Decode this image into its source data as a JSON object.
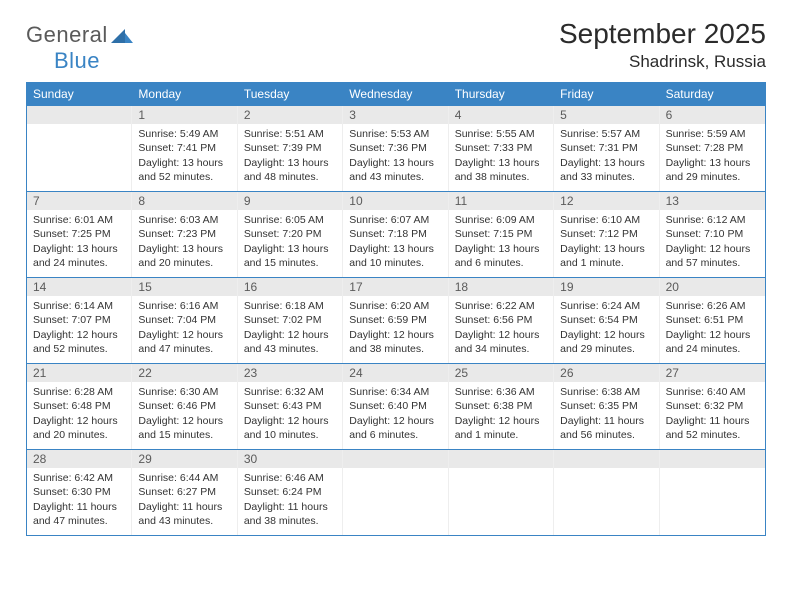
{
  "logo": {
    "word1": "General",
    "word2": "Blue"
  },
  "title": "September 2025",
  "location": "Shadrinsk, Russia",
  "header_bg": "#3a84c4",
  "daynames": [
    "Sunday",
    "Monday",
    "Tuesday",
    "Wednesday",
    "Thursday",
    "Friday",
    "Saturday"
  ],
  "weeks": [
    [
      {
        "n": "",
        "sunrise": "",
        "sunset": "",
        "daylight": ""
      },
      {
        "n": "1",
        "sunrise": "Sunrise: 5:49 AM",
        "sunset": "Sunset: 7:41 PM",
        "daylight": "Daylight: 13 hours and 52 minutes."
      },
      {
        "n": "2",
        "sunrise": "Sunrise: 5:51 AM",
        "sunset": "Sunset: 7:39 PM",
        "daylight": "Daylight: 13 hours and 48 minutes."
      },
      {
        "n": "3",
        "sunrise": "Sunrise: 5:53 AM",
        "sunset": "Sunset: 7:36 PM",
        "daylight": "Daylight: 13 hours and 43 minutes."
      },
      {
        "n": "4",
        "sunrise": "Sunrise: 5:55 AM",
        "sunset": "Sunset: 7:33 PM",
        "daylight": "Daylight: 13 hours and 38 minutes."
      },
      {
        "n": "5",
        "sunrise": "Sunrise: 5:57 AM",
        "sunset": "Sunset: 7:31 PM",
        "daylight": "Daylight: 13 hours and 33 minutes."
      },
      {
        "n": "6",
        "sunrise": "Sunrise: 5:59 AM",
        "sunset": "Sunset: 7:28 PM",
        "daylight": "Daylight: 13 hours and 29 minutes."
      }
    ],
    [
      {
        "n": "7",
        "sunrise": "Sunrise: 6:01 AM",
        "sunset": "Sunset: 7:25 PM",
        "daylight": "Daylight: 13 hours and 24 minutes."
      },
      {
        "n": "8",
        "sunrise": "Sunrise: 6:03 AM",
        "sunset": "Sunset: 7:23 PM",
        "daylight": "Daylight: 13 hours and 20 minutes."
      },
      {
        "n": "9",
        "sunrise": "Sunrise: 6:05 AM",
        "sunset": "Sunset: 7:20 PM",
        "daylight": "Daylight: 13 hours and 15 minutes."
      },
      {
        "n": "10",
        "sunrise": "Sunrise: 6:07 AM",
        "sunset": "Sunset: 7:18 PM",
        "daylight": "Daylight: 13 hours and 10 minutes."
      },
      {
        "n": "11",
        "sunrise": "Sunrise: 6:09 AM",
        "sunset": "Sunset: 7:15 PM",
        "daylight": "Daylight: 13 hours and 6 minutes."
      },
      {
        "n": "12",
        "sunrise": "Sunrise: 6:10 AM",
        "sunset": "Sunset: 7:12 PM",
        "daylight": "Daylight: 13 hours and 1 minute."
      },
      {
        "n": "13",
        "sunrise": "Sunrise: 6:12 AM",
        "sunset": "Sunset: 7:10 PM",
        "daylight": "Daylight: 12 hours and 57 minutes."
      }
    ],
    [
      {
        "n": "14",
        "sunrise": "Sunrise: 6:14 AM",
        "sunset": "Sunset: 7:07 PM",
        "daylight": "Daylight: 12 hours and 52 minutes."
      },
      {
        "n": "15",
        "sunrise": "Sunrise: 6:16 AM",
        "sunset": "Sunset: 7:04 PM",
        "daylight": "Daylight: 12 hours and 47 minutes."
      },
      {
        "n": "16",
        "sunrise": "Sunrise: 6:18 AM",
        "sunset": "Sunset: 7:02 PM",
        "daylight": "Daylight: 12 hours and 43 minutes."
      },
      {
        "n": "17",
        "sunrise": "Sunrise: 6:20 AM",
        "sunset": "Sunset: 6:59 PM",
        "daylight": "Daylight: 12 hours and 38 minutes."
      },
      {
        "n": "18",
        "sunrise": "Sunrise: 6:22 AM",
        "sunset": "Sunset: 6:56 PM",
        "daylight": "Daylight: 12 hours and 34 minutes."
      },
      {
        "n": "19",
        "sunrise": "Sunrise: 6:24 AM",
        "sunset": "Sunset: 6:54 PM",
        "daylight": "Daylight: 12 hours and 29 minutes."
      },
      {
        "n": "20",
        "sunrise": "Sunrise: 6:26 AM",
        "sunset": "Sunset: 6:51 PM",
        "daylight": "Daylight: 12 hours and 24 minutes."
      }
    ],
    [
      {
        "n": "21",
        "sunrise": "Sunrise: 6:28 AM",
        "sunset": "Sunset: 6:48 PM",
        "daylight": "Daylight: 12 hours and 20 minutes."
      },
      {
        "n": "22",
        "sunrise": "Sunrise: 6:30 AM",
        "sunset": "Sunset: 6:46 PM",
        "daylight": "Daylight: 12 hours and 15 minutes."
      },
      {
        "n": "23",
        "sunrise": "Sunrise: 6:32 AM",
        "sunset": "Sunset: 6:43 PM",
        "daylight": "Daylight: 12 hours and 10 minutes."
      },
      {
        "n": "24",
        "sunrise": "Sunrise: 6:34 AM",
        "sunset": "Sunset: 6:40 PM",
        "daylight": "Daylight: 12 hours and 6 minutes."
      },
      {
        "n": "25",
        "sunrise": "Sunrise: 6:36 AM",
        "sunset": "Sunset: 6:38 PM",
        "daylight": "Daylight: 12 hours and 1 minute."
      },
      {
        "n": "26",
        "sunrise": "Sunrise: 6:38 AM",
        "sunset": "Sunset: 6:35 PM",
        "daylight": "Daylight: 11 hours and 56 minutes."
      },
      {
        "n": "27",
        "sunrise": "Sunrise: 6:40 AM",
        "sunset": "Sunset: 6:32 PM",
        "daylight": "Daylight: 11 hours and 52 minutes."
      }
    ],
    [
      {
        "n": "28",
        "sunrise": "Sunrise: 6:42 AM",
        "sunset": "Sunset: 6:30 PM",
        "daylight": "Daylight: 11 hours and 47 minutes."
      },
      {
        "n": "29",
        "sunrise": "Sunrise: 6:44 AM",
        "sunset": "Sunset: 6:27 PM",
        "daylight": "Daylight: 11 hours and 43 minutes."
      },
      {
        "n": "30",
        "sunrise": "Sunrise: 6:46 AM",
        "sunset": "Sunset: 6:24 PM",
        "daylight": "Daylight: 11 hours and 38 minutes."
      },
      {
        "n": "",
        "sunrise": "",
        "sunset": "",
        "daylight": ""
      },
      {
        "n": "",
        "sunrise": "",
        "sunset": "",
        "daylight": ""
      },
      {
        "n": "",
        "sunrise": "",
        "sunset": "",
        "daylight": ""
      },
      {
        "n": "",
        "sunrise": "",
        "sunset": "",
        "daylight": ""
      }
    ]
  ]
}
